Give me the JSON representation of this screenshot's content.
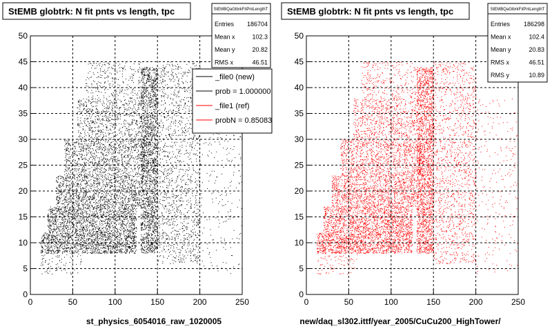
{
  "chart_data": [
    {
      "type": "scatter",
      "title": "StEMB globtrk: N fit pnts vs length, tpc",
      "xlabel": "st_physics_6054016_raw_1020005",
      "ylabel": "",
      "xlim": [
        0,
        250
      ],
      "ylim": [
        0,
        50
      ],
      "x_ticks": [
        0,
        50,
        100,
        150,
        200,
        250
      ],
      "y_ticks": [
        0,
        5,
        10,
        15,
        20,
        25,
        30,
        35,
        40,
        45,
        50
      ],
      "grid": true,
      "color": "#000000",
      "stats": {
        "name": "StEMBQaGlbrkFitPntLengthT",
        "rows": [
          {
            "label": "Entries",
            "value": "186704"
          },
          {
            "label": "Mean x",
            "value": "102.3"
          },
          {
            "label": "Mean y",
            "value": "20.82"
          },
          {
            "label": "RMS x",
            "value": "46.51"
          }
        ]
      },
      "legend": {
        "placement": "top-right",
        "entries": [
          {
            "label": "_file0 (new)",
            "color": "#000000"
          },
          {
            "label": "prob = 1.000000",
            "color": "#000000"
          },
          {
            "label": "_file1 (ref)",
            "color": "#ff0000"
          },
          {
            "label": "probN = 0.85083",
            "color": "#ff0000"
          }
        ]
      },
      "density_regions": [
        {
          "x": [
            12,
            125
          ],
          "y": [
            8,
            12
          ],
          "density": 1.0
        },
        {
          "x": [
            20,
            125
          ],
          "y": [
            12,
            17
          ],
          "density": 0.85
        },
        {
          "x": [
            30,
            130
          ],
          "y": [
            17,
            23
          ],
          "density": 0.7
        },
        {
          "x": [
            40,
            135
          ],
          "y": [
            23,
            30
          ],
          "density": 0.55
        },
        {
          "x": [
            55,
            130
          ],
          "y": [
            30,
            38
          ],
          "density": 0.4
        },
        {
          "x": [
            65,
            130
          ],
          "y": [
            38,
            45
          ],
          "density": 0.2
        },
        {
          "x": [
            130,
            150
          ],
          "y": [
            8,
            44
          ],
          "density": 1.0
        },
        {
          "x": [
            150,
            200
          ],
          "y": [
            6,
            45
          ],
          "density": 0.25
        },
        {
          "x": [
            200,
            250
          ],
          "y": [
            4,
            38
          ],
          "density": 0.05
        },
        {
          "x": [
            12,
            60
          ],
          "y": [
            4,
            8
          ],
          "density": 0.15
        }
      ]
    },
    {
      "type": "scatter",
      "title": "StEMB globtrk: N fit pnts vs length, tpc",
      "xlabel": "new/daq_sl302.ittf/year_2005/CuCu200_HighTower/",
      "ylabel": "",
      "xlim": [
        0,
        250
      ],
      "ylim": [
        0,
        50
      ],
      "x_ticks": [
        0,
        50,
        100,
        150,
        200,
        250
      ],
      "y_ticks": [
        0,
        5,
        10,
        15,
        20,
        25,
        30,
        35,
        40,
        45,
        50
      ],
      "grid": true,
      "color": "#ff0000",
      "stats": {
        "name": "StEMBQaGlbrkFitPntLengthT",
        "rows": [
          {
            "label": "Entries",
            "value": "186298"
          },
          {
            "label": "Mean x",
            "value": "102.4"
          },
          {
            "label": "Mean y",
            "value": "20.83"
          },
          {
            "label": "RMS x",
            "value": "46.51"
          },
          {
            "label": "RMS y",
            "value": "10.89"
          }
        ]
      },
      "density_regions": [
        {
          "x": [
            12,
            125
          ],
          "y": [
            8,
            12
          ],
          "density": 1.0
        },
        {
          "x": [
            20,
            125
          ],
          "y": [
            12,
            17
          ],
          "density": 0.85
        },
        {
          "x": [
            30,
            130
          ],
          "y": [
            17,
            23
          ],
          "density": 0.7
        },
        {
          "x": [
            40,
            135
          ],
          "y": [
            23,
            30
          ],
          "density": 0.55
        },
        {
          "x": [
            55,
            130
          ],
          "y": [
            30,
            38
          ],
          "density": 0.4
        },
        {
          "x": [
            65,
            130
          ],
          "y": [
            38,
            45
          ],
          "density": 0.2
        },
        {
          "x": [
            130,
            150
          ],
          "y": [
            8,
            44
          ],
          "density": 1.0
        },
        {
          "x": [
            150,
            200
          ],
          "y": [
            6,
            45
          ],
          "density": 0.25
        },
        {
          "x": [
            200,
            250
          ],
          "y": [
            4,
            38
          ],
          "density": 0.05
        },
        {
          "x": [
            12,
            60
          ],
          "y": [
            4,
            8
          ],
          "density": 0.15
        }
      ]
    }
  ]
}
